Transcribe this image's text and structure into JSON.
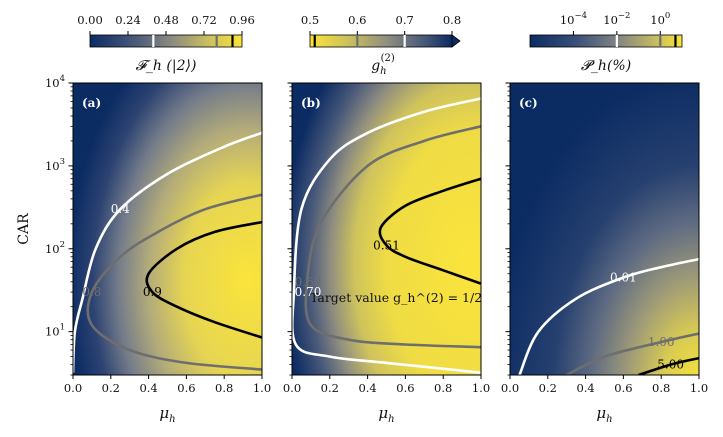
{
  "chart_data": [
    {
      "type": "heatmap",
      "panel_label": "(a)",
      "x": [
        0,
        0.1,
        0.2,
        0.3,
        0.4,
        0.5,
        0.6,
        0.7,
        0.8,
        0.9,
        1.0
      ],
      "y": [
        3,
        10,
        30,
        100,
        300,
        1000,
        3000,
        10000
      ],
      "xlabel": "μ_h",
      "ylabel": "CAR",
      "xlim": [
        0,
        1
      ],
      "ylim": [
        3,
        10000
      ],
      "yscale": "log",
      "xticks": [
        "0.0",
        "0.2",
        "0.4",
        "0.6",
        "0.8",
        "1.0"
      ],
      "yticks": [
        {
          "value": 10,
          "label": "10",
          "sup": "1"
        },
        {
          "value": 100,
          "label": "10",
          "sup": "2"
        },
        {
          "value": 1000,
          "label": "10",
          "sup": "3"
        },
        {
          "value": 10000,
          "label": "10",
          "sup": "4"
        }
      ],
      "colorbar": {
        "label": "𝓕_h (|2⟩)",
        "ticks": [
          "0.00",
          "0.24",
          "0.48",
          "0.72",
          "0.96"
        ],
        "range": [
          0,
          0.96
        ],
        "lines": [
          {
            "value": 0.4,
            "color": "#ffffff"
          },
          {
            "value": 0.8,
            "color": "#6e6e6e"
          },
          {
            "value": 0.9,
            "color": "#000000"
          }
        ]
      },
      "contours": [
        {
          "level": "0.4",
          "color": "#ffffff",
          "points": [
            [
              0.0,
              3.2
            ],
            [
              0.01,
              10
            ],
            [
              0.05,
              25
            ],
            [
              0.12,
              100
            ],
            [
              0.25,
              300
            ],
            [
              0.5,
              800
            ],
            [
              0.8,
              1700
            ],
            [
              1.0,
              2500
            ]
          ]
        },
        {
          "level": "0.8",
          "color": "#6e6e6e",
          "points": [
            [
              1.0,
              450
            ],
            [
              0.7,
              300
            ],
            [
              0.45,
              160
            ],
            [
              0.25,
              80
            ],
            [
              0.1,
              30
            ],
            [
              0.1,
              12
            ],
            [
              0.3,
              6
            ],
            [
              0.6,
              4.2
            ],
            [
              1.0,
              3.5
            ]
          ]
        },
        {
          "level": "0.9",
          "color": "#000000",
          "points": [
            [
              1.0,
              210
            ],
            [
              0.75,
              160
            ],
            [
              0.55,
              100
            ],
            [
              0.4,
              50
            ],
            [
              0.42,
              30
            ],
            [
              0.55,
              20
            ],
            [
              0.75,
              13
            ],
            [
              1.0,
              8.5
            ]
          ]
        }
      ]
    },
    {
      "type": "heatmap",
      "panel_label": "(b)",
      "xlabel": "μ_h",
      "xlim": [
        0,
        1
      ],
      "ylim": [
        3,
        10000
      ],
      "yscale": "log",
      "xticks": [
        "0.0",
        "0.2",
        "0.4",
        "0.6",
        "0.8",
        "1.0"
      ],
      "colorbar": {
        "label": "g_h^(2)",
        "ticks": [
          "0.5",
          "0.6",
          "0.7",
          "0.8"
        ],
        "range": [
          0.5,
          0.8
        ],
        "lines": [
          {
            "value": 0.51,
            "color": "#000000"
          },
          {
            "value": 0.6,
            "color": "#6e6e6e"
          },
          {
            "value": 0.7,
            "color": "#ffffff"
          }
        ]
      },
      "annotation": "Target value g_h^(2) = 1/2",
      "contours": [
        {
          "level": "0.70",
          "color": "#ffffff",
          "points": [
            [
              1.0,
              6500
            ],
            [
              0.7,
              4500
            ],
            [
              0.4,
              2500
            ],
            [
              0.2,
              1200
            ],
            [
              0.05,
              300
            ],
            [
              0.01,
              30
            ],
            [
              0.02,
              7
            ],
            [
              0.2,
              5
            ],
            [
              0.5,
              4.2
            ],
            [
              1.0,
              3.2
            ]
          ]
        },
        {
          "level": "0.60",
          "color": "#6e6e6e",
          "points": [
            [
              1.0,
              3000
            ],
            [
              0.7,
              2000
            ],
            [
              0.4,
              1000
            ],
            [
              0.15,
              200
            ],
            [
              0.08,
              40
            ],
            [
              0.1,
              12
            ],
            [
              0.3,
              8
            ],
            [
              0.6,
              7
            ],
            [
              1.0,
              6.5
            ]
          ]
        },
        {
          "level": "0.51",
          "color": "#000000",
          "points": [
            [
              1.0,
              700
            ],
            [
              0.8,
              500
            ],
            [
              0.6,
              330
            ],
            [
              0.47,
              180
            ],
            [
              0.5,
              110
            ],
            [
              0.6,
              80
            ],
            [
              0.8,
              55
            ],
            [
              1.0,
              38
            ]
          ]
        }
      ]
    },
    {
      "type": "heatmap",
      "panel_label": "(c)",
      "xlabel": "μ_h",
      "xlim": [
        0,
        1
      ],
      "ylim": [
        3,
        10000
      ],
      "yscale": "log",
      "xticks": [
        "0.0",
        "0.2",
        "0.4",
        "0.6",
        "0.8",
        "1.0"
      ],
      "colorbar": {
        "label": "𝓟_h(%)",
        "ticks": [
          {
            "label": "10",
            "sup": "−4"
          },
          {
            "label": "10",
            "sup": "−2"
          },
          {
            "label": "10",
            "sup": "0"
          }
        ],
        "range_log10": [
          -6,
          1
        ],
        "lines": [
          {
            "value": 0.01,
            "color": "#ffffff"
          },
          {
            "value": 1.0,
            "color": "#6e6e6e"
          },
          {
            "value": 5.0,
            "color": "#000000"
          }
        ]
      },
      "contours": [
        {
          "level": "0.01",
          "color": "#ffffff",
          "points": [
            [
              0.05,
              3.0
            ],
            [
              0.15,
              10
            ],
            [
              0.35,
              25
            ],
            [
              0.6,
              45
            ],
            [
              0.8,
              60
            ],
            [
              1.0,
              75
            ]
          ]
        },
        {
          "level": "1.00",
          "color": "#6e6e6e",
          "points": [
            [
              0.3,
              3.0
            ],
            [
              0.5,
              5
            ],
            [
              0.8,
              7.5
            ],
            [
              1.0,
              9.5
            ]
          ]
        },
        {
          "level": "5.00",
          "color": "#000000",
          "points": [
            [
              0.68,
              3.0
            ],
            [
              0.85,
              4.0
            ],
            [
              1.0,
              4.8
            ]
          ]
        }
      ]
    }
  ]
}
